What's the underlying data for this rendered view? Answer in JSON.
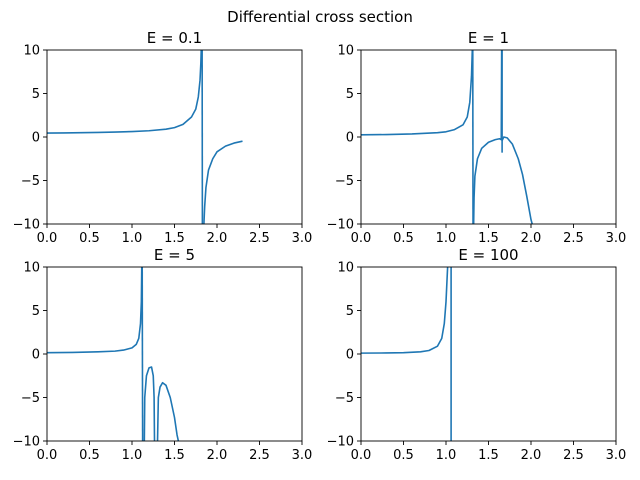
{
  "figure": {
    "suptitle": "Differential cross section"
  },
  "chart_data": [
    {
      "type": "line",
      "title": "E = 0.1",
      "xlabel": "",
      "ylabel": "",
      "xlim": [
        0,
        3
      ],
      "ylim": [
        -10,
        10
      ],
      "xticks": [
        "0.0",
        "0.5",
        "1.0",
        "1.5",
        "2.0",
        "2.5",
        "3.0"
      ],
      "yticks": [
        "10",
        "5",
        "0",
        "−5",
        "−10"
      ],
      "grid": false,
      "series": [
        {
          "color": "#1f77b4",
          "segments": [
            [
              [
                0,
                0.45
              ],
              [
                0.2,
                0.47
              ],
              [
                0.4,
                0.5
              ],
              [
                0.6,
                0.53
              ],
              [
                0.8,
                0.57
              ],
              [
                1.0,
                0.63
              ],
              [
                1.2,
                0.72
              ],
              [
                1.4,
                0.9
              ],
              [
                1.5,
                1.08
              ],
              [
                1.6,
                1.45
              ],
              [
                1.7,
                2.3
              ],
              [
                1.75,
                3.2
              ],
              [
                1.78,
                4.6
              ],
              [
                1.8,
                6.5
              ],
              [
                1.81,
                8.5
              ],
              [
                1.815,
                10.2
              ]
            ],
            [
              [
                1.825,
                10.2
              ],
              [
                1.828,
                -10.2
              ]
            ],
            [
              [
                1.845,
                -10.2
              ],
              [
                1.855,
                -8.0
              ],
              [
                1.87,
                -5.8
              ],
              [
                1.9,
                -3.8
              ],
              [
                1.95,
                -2.5
              ],
              [
                2.0,
                -1.7
              ],
              [
                2.1,
                -1.05
              ],
              [
                2.2,
                -0.7
              ],
              [
                2.3,
                -0.48
              ]
            ]
          ]
        }
      ]
    },
    {
      "type": "line",
      "title": "E = 1",
      "xlabel": "",
      "ylabel": "",
      "xlim": [
        0,
        3
      ],
      "ylim": [
        -10,
        10
      ],
      "xticks": [
        "0.0",
        "0.5",
        "1.0",
        "1.5",
        "2.0",
        "2.5",
        "3.0"
      ],
      "yticks": [
        "10",
        "5",
        "0",
        "−5",
        "−10"
      ],
      "grid": false,
      "series": [
        {
          "color": "#1f77b4",
          "segments": [
            [
              [
                0,
                0.25
              ],
              [
                0.3,
                0.28
              ],
              [
                0.6,
                0.35
              ],
              [
                0.9,
                0.5
              ],
              [
                1.0,
                0.6
              ],
              [
                1.1,
                0.85
              ],
              [
                1.2,
                1.4
              ],
              [
                1.25,
                2.3
              ],
              [
                1.28,
                4
              ],
              [
                1.3,
                7
              ],
              [
                1.31,
                10.2
              ]
            ],
            [
              [
                1.315,
                10.2
              ],
              [
                1.318,
                -10.2
              ]
            ],
            [
              [
                1.325,
                -10.2
              ],
              [
                1.33,
                -7
              ],
              [
                1.34,
                -4.5
              ],
              [
                1.37,
                -2.5
              ],
              [
                1.42,
                -1.3
              ],
              [
                1.5,
                -0.6
              ],
              [
                1.58,
                -0.3
              ],
              [
                1.63,
                -0.2
              ],
              [
                1.65,
                -0.3
              ],
              [
                1.655,
                10.2
              ]
            ],
            [
              [
                1.66,
                10.2
              ],
              [
                1.66,
                -1.8
              ]
            ],
            [
              [
                1.66,
                -0.4
              ],
              [
                1.68,
                0
              ],
              [
                1.72,
                -0.1
              ],
              [
                1.78,
                -0.8
              ],
              [
                1.85,
                -2.5
              ],
              [
                1.9,
                -4.3
              ],
              [
                1.95,
                -6.8
              ],
              [
                2.0,
                -9.5
              ],
              [
                2.02,
                -10.2
              ]
            ]
          ]
        }
      ]
    },
    {
      "type": "line",
      "title": "E = 5",
      "xlabel": "",
      "ylabel": "",
      "xlim": [
        0,
        3
      ],
      "ylim": [
        -10,
        10
      ],
      "xticks": [
        "0.0",
        "0.5",
        "1.0",
        "1.5",
        "2.0",
        "2.5",
        "3.0"
      ],
      "yticks": [
        "10",
        "5",
        "0",
        "−5",
        "−10"
      ],
      "grid": false,
      "series": [
        {
          "color": "#1f77b4",
          "segments": [
            [
              [
                0,
                0.15
              ],
              [
                0.3,
                0.18
              ],
              [
                0.6,
                0.25
              ],
              [
                0.8,
                0.33
              ],
              [
                0.9,
                0.45
              ],
              [
                1.0,
                0.7
              ],
              [
                1.05,
                1.1
              ],
              [
                1.08,
                1.8
              ],
              [
                1.1,
                3.5
              ],
              [
                1.11,
                6
              ],
              [
                1.115,
                10.2
              ]
            ],
            [
              [
                1.12,
                10.2
              ],
              [
                1.125,
                -10.2
              ]
            ],
            [
              [
                1.145,
                -10.2
              ],
              [
                1.15,
                -5
              ],
              [
                1.17,
                -2.5
              ],
              [
                1.2,
                -1.6
              ],
              [
                1.23,
                -1.5
              ],
              [
                1.25,
                -2.5
              ],
              [
                1.26,
                -5
              ],
              [
                1.265,
                -10.2
              ]
            ],
            [
              [
                1.3,
                -10.2
              ],
              [
                1.31,
                -5
              ],
              [
                1.33,
                -3.8
              ],
              [
                1.36,
                -3.3
              ],
              [
                1.4,
                -3.6
              ],
              [
                1.45,
                -5
              ],
              [
                1.5,
                -7.3
              ],
              [
                1.53,
                -9.3
              ],
              [
                1.55,
                -10.2
              ]
            ]
          ]
        }
      ]
    },
    {
      "type": "line",
      "title": "E = 100",
      "xlabel": "",
      "ylabel": "",
      "xlim": [
        0,
        3
      ],
      "ylim": [
        -10,
        10
      ],
      "xticks": [
        "0.0",
        "0.5",
        "1.0",
        "1.5",
        "2.0",
        "2.5",
        "3.0"
      ],
      "yticks": [
        "10",
        "5",
        "0",
        "−5",
        "−10"
      ],
      "grid": false,
      "series": [
        {
          "color": "#1f77b4",
          "segments": [
            [
              [
                0,
                0.1
              ],
              [
                0.3,
                0.12
              ],
              [
                0.5,
                0.15
              ],
              [
                0.7,
                0.25
              ],
              [
                0.8,
                0.4
              ],
              [
                0.9,
                0.9
              ],
              [
                0.95,
                1.8
              ],
              [
                0.98,
                3.5
              ],
              [
                1.0,
                6
              ],
              [
                1.02,
                10.2
              ]
            ],
            [
              [
                1.06,
                10.2
              ],
              [
                1.06,
                -10.2
              ]
            ]
          ]
        }
      ]
    }
  ]
}
